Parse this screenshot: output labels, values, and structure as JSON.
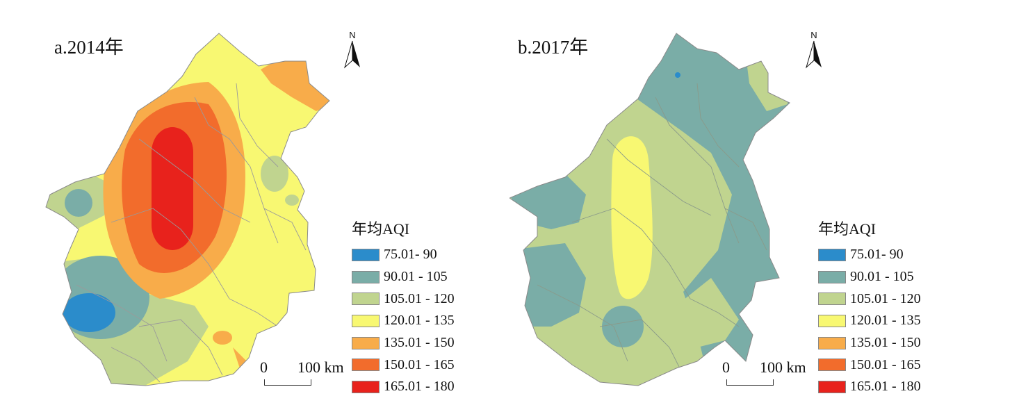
{
  "panels": [
    {
      "label": "a.2014年",
      "legend_title": "年均AQI"
    },
    {
      "label": "b.2017年",
      "legend_title": "年均AQI"
    }
  ],
  "north_label": "N",
  "scale": {
    "start": "0",
    "end": "100 km"
  },
  "legend_classes": [
    {
      "label": "75.01- 90",
      "color": "#2b8ccb"
    },
    {
      "label": "90.01 - 105",
      "color": "#7aada7"
    },
    {
      "label": "105.01 - 120",
      "color": "#c0d48f"
    },
    {
      "label": "120.01 - 135",
      "color": "#f8f872"
    },
    {
      "label": "135.01 - 150",
      "color": "#f8ac4a"
    },
    {
      "label": "150.01 - 165",
      "color": "#f26c2c"
    },
    {
      "label": "165.01 - 180",
      "color": "#e8221c"
    }
  ]
}
